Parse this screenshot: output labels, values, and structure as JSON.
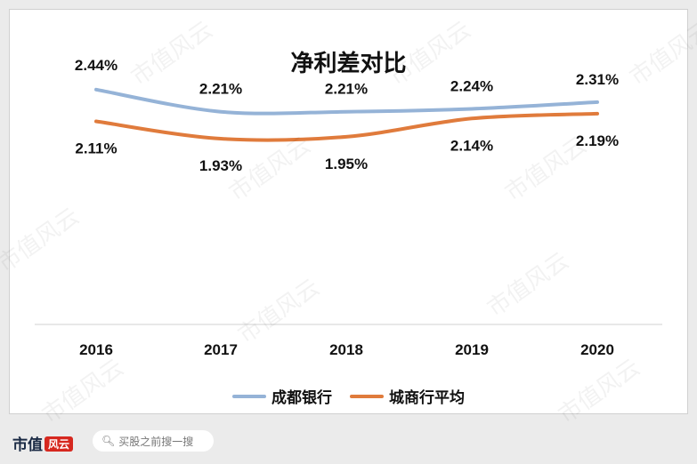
{
  "chart_data": {
    "type": "line",
    "title": "净利差对比",
    "categories": [
      "2016",
      "2017",
      "2018",
      "2019",
      "2020"
    ],
    "series": [
      {
        "name": "成都银行",
        "values": [
          2.44,
          2.21,
          2.21,
          2.24,
          2.31
        ],
        "labels": [
          "2.44%",
          "2.21%",
          "2.21%",
          "2.24%",
          "2.31%"
        ],
        "color": "#95b3d7"
      },
      {
        "name": "城商行平均",
        "values": [
          2.11,
          1.93,
          1.95,
          2.14,
          2.19
        ],
        "labels": [
          "2.11%",
          "1.93%",
          "1.95%",
          "2.14%",
          "2.19%"
        ],
        "color": "#e07b3c"
      }
    ],
    "xlabel": "",
    "ylabel": "",
    "ylim": [
      0.0,
      2.9
    ],
    "grid": false,
    "legend_position": "bottom"
  },
  "footer": {
    "brand": "市值",
    "brand_mark": "风云",
    "search_placeholder": "买股之前搜一搜"
  },
  "watermark": "市值风云"
}
